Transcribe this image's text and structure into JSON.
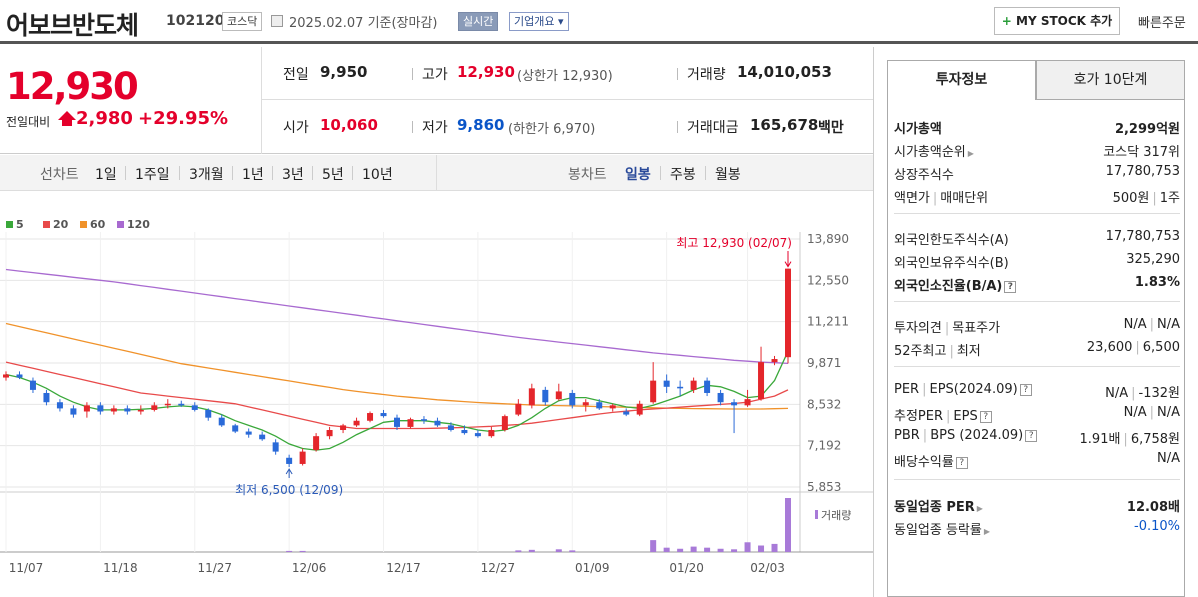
{
  "header": {
    "stock_name": "어보브반도체",
    "stock_code": "102120",
    "market": "코스닥",
    "date": "2025.02.07  기준(장마감)",
    "realtime": "실시간",
    "company_info": "기업개요",
    "mystock": "MY STOCK 추가",
    "quick_order": "빠른주문"
  },
  "price": {
    "current": "12,930",
    "change_label": "전일대비",
    "change": "2,980",
    "change_pct": "+29.95%",
    "prev_label": "전일",
    "prev": "9,950",
    "high_label": "고가",
    "high": "12,930",
    "upper_limit": "(상한가 12,930)",
    "volume_label": "거래량",
    "volume": "14,010,053",
    "open_label": "시가",
    "open": "10,060",
    "low_label": "저가",
    "low": "9,860",
    "lower_limit": "(하한가 6,970)",
    "amount_label": "거래대금",
    "amount": "165,678",
    "amount_unit": "백만"
  },
  "period_bar": {
    "line_label": "선차트",
    "line_items": [
      "1일",
      "1주일",
      "3개월",
      "1년",
      "3년",
      "5년",
      "10년"
    ],
    "candle_label": "봉차트",
    "candle_items": [
      "일봉",
      "주봉",
      "월봉"
    ],
    "selected": "일봉"
  },
  "chart_data": {
    "type": "candlestick",
    "legend": [
      "5",
      "20",
      "60",
      "120"
    ],
    "legend_colors": [
      "#3aa83a",
      "#e84a4a",
      "#f0922a",
      "#a86ad0"
    ],
    "y_ticks": [
      "13,890",
      "12,550",
      "11,211",
      "9,871",
      "8,532",
      "7,192",
      "5,853"
    ],
    "ylim": [
      5853,
      13890
    ],
    "x_ticks": [
      "11/07",
      "11/18",
      "11/27",
      "12/06",
      "12/17",
      "12/27",
      "01/09",
      "01/20",
      "02/03"
    ],
    "max_annotation": "최고 12,930 (02/07)",
    "min_annotation": "최저 6,500 (12/09)",
    "volume_label": "거래량",
    "candles": [
      [
        9400,
        9600,
        9300,
        9500
      ],
      [
        9500,
        9600,
        9350,
        9400
      ],
      [
        9300,
        9400,
        8900,
        9000
      ],
      [
        8900,
        9000,
        8500,
        8600
      ],
      [
        8600,
        8700,
        8300,
        8400
      ],
      [
        8400,
        8500,
        8100,
        8200
      ],
      [
        8300,
        8600,
        8100,
        8500
      ],
      [
        8500,
        8600,
        8200,
        8300
      ],
      [
        8300,
        8500,
        8200,
        8400
      ],
      [
        8400,
        8500,
        8200,
        8300
      ],
      [
        8300,
        8500,
        8200,
        8350
      ],
      [
        8350,
        8600,
        8300,
        8500
      ],
      [
        8500,
        8700,
        8400,
        8550
      ],
      [
        8550,
        8650,
        8450,
        8500
      ],
      [
        8500,
        8600,
        8300,
        8350
      ],
      [
        8350,
        8400,
        8000,
        8100
      ],
      [
        8100,
        8200,
        7800,
        7850
      ],
      [
        7850,
        7900,
        7600,
        7650
      ],
      [
        7650,
        7750,
        7450,
        7550
      ],
      [
        7550,
        7650,
        7350,
        7400
      ],
      [
        7300,
        7400,
        6900,
        7000
      ],
      [
        6800,
        6900,
        6500,
        6600
      ],
      [
        6600,
        7100,
        6550,
        7000
      ],
      [
        7050,
        7600,
        7000,
        7500
      ],
      [
        7500,
        7800,
        7400,
        7700
      ],
      [
        7700,
        7900,
        7600,
        7850
      ],
      [
        7850,
        8100,
        7800,
        8000
      ],
      [
        8000,
        8300,
        7950,
        8250
      ],
      [
        8250,
        8350,
        8100,
        8150
      ],
      [
        8100,
        8200,
        7700,
        7800
      ],
      [
        7800,
        8100,
        7750,
        8050
      ],
      [
        8050,
        8150,
        7900,
        8000
      ],
      [
        8000,
        8100,
        7800,
        7850
      ],
      [
        7850,
        7950,
        7650,
        7700
      ],
      [
        7700,
        7850,
        7550,
        7600
      ],
      [
        7600,
        7700,
        7450,
        7500
      ],
      [
        7500,
        7800,
        7450,
        7700
      ],
      [
        7700,
        8200,
        7650,
        8150
      ],
      [
        8200,
        8700,
        8150,
        8550
      ],
      [
        8500,
        9200,
        8400,
        9050
      ],
      [
        9000,
        9100,
        8500,
        8600
      ],
      [
        8700,
        9200,
        8650,
        8950
      ],
      [
        8900,
        9000,
        8400,
        8500
      ],
      [
        8500,
        8700,
        8300,
        8600
      ],
      [
        8600,
        8700,
        8350,
        8400
      ],
      [
        8400,
        8550,
        8300,
        8500
      ],
      [
        8300,
        8400,
        8150,
        8200
      ],
      [
        8200,
        8650,
        8150,
        8550
      ],
      [
        8600,
        9900,
        8550,
        9300
      ],
      [
        9300,
        9500,
        8900,
        9100
      ],
      [
        9100,
        9300,
        8800,
        9050
      ],
      [
        9000,
        9400,
        8900,
        9300
      ],
      [
        9300,
        9400,
        8800,
        8900
      ],
      [
        8900,
        9000,
        8500,
        8600
      ],
      [
        8600,
        8700,
        7600,
        8500
      ],
      [
        8500,
        9000,
        8450,
        8700
      ],
      [
        8700,
        10400,
        8650,
        9900
      ],
      [
        9900,
        10100,
        9800,
        10000
      ],
      [
        10060,
        12930,
        9860,
        12930
      ]
    ],
    "ma5": [
      9500,
      9400,
      9250,
      9050,
      8800,
      8600,
      8450,
      8350,
      8350,
      8350,
      8370,
      8400,
      8450,
      8480,
      8450,
      8350,
      8200,
      8000,
      7850,
      7700,
      7500,
      7250,
      7100,
      7050,
      7100,
      7300,
      7550,
      7750,
      7950,
      8000,
      8000,
      8000,
      7950,
      7900,
      7800,
      7700,
      7650,
      7700,
      7850,
      8100,
      8400,
      8650,
      8750,
      8750,
      8650,
      8550,
      8450,
      8400,
      8500,
      8650,
      8800,
      9000,
      9150,
      9100,
      8950,
      8750,
      8800,
      9300,
      10250
    ],
    "ma20": [
      9900,
      9800,
      9700,
      9600,
      9500,
      9400,
      9300,
      9200,
      9100,
      9000,
      8900,
      8850,
      8800,
      8750,
      8700,
      8650,
      8600,
      8550,
      8450,
      8350,
      8250,
      8150,
      8050,
      7950,
      7850,
      7800,
      7750,
      7750,
      7750,
      7750,
      7750,
      7750,
      7760,
      7770,
      7780,
      7800,
      7820,
      7850,
      7880,
      7920,
      7980,
      8040,
      8100,
      8160,
      8220,
      8270,
      8310,
      8350,
      8380,
      8410,
      8440,
      8470,
      8500,
      8530,
      8560,
      8600,
      8700,
      8800,
      9000
    ],
    "ma60": [
      11150,
      11050,
      10950,
      10850,
      10750,
      10650,
      10550,
      10450,
      10350,
      10250,
      10150,
      10050,
      9950,
      9850,
      9780,
      9710,
      9640,
      9570,
      9500,
      9430,
      9360,
      9290,
      9220,
      9150,
      9080,
      9010,
      8950,
      8900,
      8850,
      8800,
      8760,
      8720,
      8680,
      8650,
      8620,
      8590,
      8570,
      8550,
      8530,
      8510,
      8500,
      8490,
      8480,
      8470,
      8460,
      8450,
      8440,
      8430,
      8420,
      8410,
      8400,
      8395,
      8390,
      8385,
      8380,
      8380,
      8380,
      8390,
      8400
    ],
    "ma120": [
      12900,
      12850,
      12800,
      12750,
      12700,
      12650,
      12600,
      12550,
      12500,
      12440,
      12380,
      12320,
      12260,
      12200,
      12140,
      12080,
      12020,
      11960,
      11900,
      11840,
      11780,
      11720,
      11660,
      11600,
      11540,
      11480,
      11420,
      11360,
      11300,
      11240,
      11180,
      11120,
      11060,
      11000,
      10940,
      10880,
      10820,
      10760,
      10700,
      10650,
      10600,
      10550,
      10500,
      10450,
      10400,
      10350,
      10300,
      10250,
      10200,
      10160,
      10120,
      10080,
      10040,
      10000,
      9960,
      9930,
      9900,
      9880,
      9860
    ],
    "volumes": [
      0,
      0,
      0,
      0,
      0,
      0,
      0,
      0,
      0,
      0,
      0,
      0,
      0,
      0,
      0,
      0,
      0,
      0,
      0,
      0,
      0,
      0.02,
      0.02,
      0,
      0,
      0,
      0,
      0,
      0,
      0,
      0,
      0,
      0,
      0,
      0,
      0,
      0,
      0,
      0.03,
      0.04,
      0,
      0.05,
      0.03,
      0,
      0,
      0,
      0,
      0,
      0.22,
      0.08,
      0.06,
      0.1,
      0.08,
      0.06,
      0.05,
      0.18,
      0.12,
      0.15,
      1.0
    ]
  },
  "right_panel": {
    "tabs": [
      "투자정보",
      "호가 10단계"
    ],
    "market_cap_label": "시가총액",
    "market_cap": "2,299억원",
    "cap_rank_label": "시가총액순위",
    "cap_rank": "코스닥 317위",
    "shares_label": "상장주식수",
    "shares": "17,780,753",
    "face_label": "액면가",
    "trade_unit_label": "매매단위",
    "face": "500원",
    "trade_unit": "1주",
    "foreign_limit_label": "외국인한도주식수(A)",
    "foreign_limit": "17,780,753",
    "foreign_hold_label": "외국인보유주식수(B)",
    "foreign_hold": "325,290",
    "foreign_ratio_label": "외국인소진율(B/A)",
    "foreign_ratio": "1.83%",
    "opinion_label": "투자의견",
    "target_label": "목표주가",
    "opinion": "N/A",
    "target": "N/A",
    "high52_label": "52주최고",
    "low52_label": "최저",
    "high52": "23,600",
    "low52": "6,500",
    "per_label": "PER",
    "eps_label": "EPS(2024.09)",
    "per": "N/A",
    "eps": "-132원",
    "est_per_label": "추정PER",
    "est_eps_label": "EPS",
    "est_per": "N/A",
    "est_eps": "N/A",
    "pbr_label": "PBR",
    "bps_label": "BPS (2024.09)",
    "pbr": "1.91배",
    "bps": "6,758원",
    "div_label": "배당수익률",
    "div": "N/A",
    "ind_per_label": "동일업종 PER",
    "ind_per": "12.08배",
    "ind_chg_label": "동일업종 등락률",
    "ind_chg": "-0.10%"
  }
}
